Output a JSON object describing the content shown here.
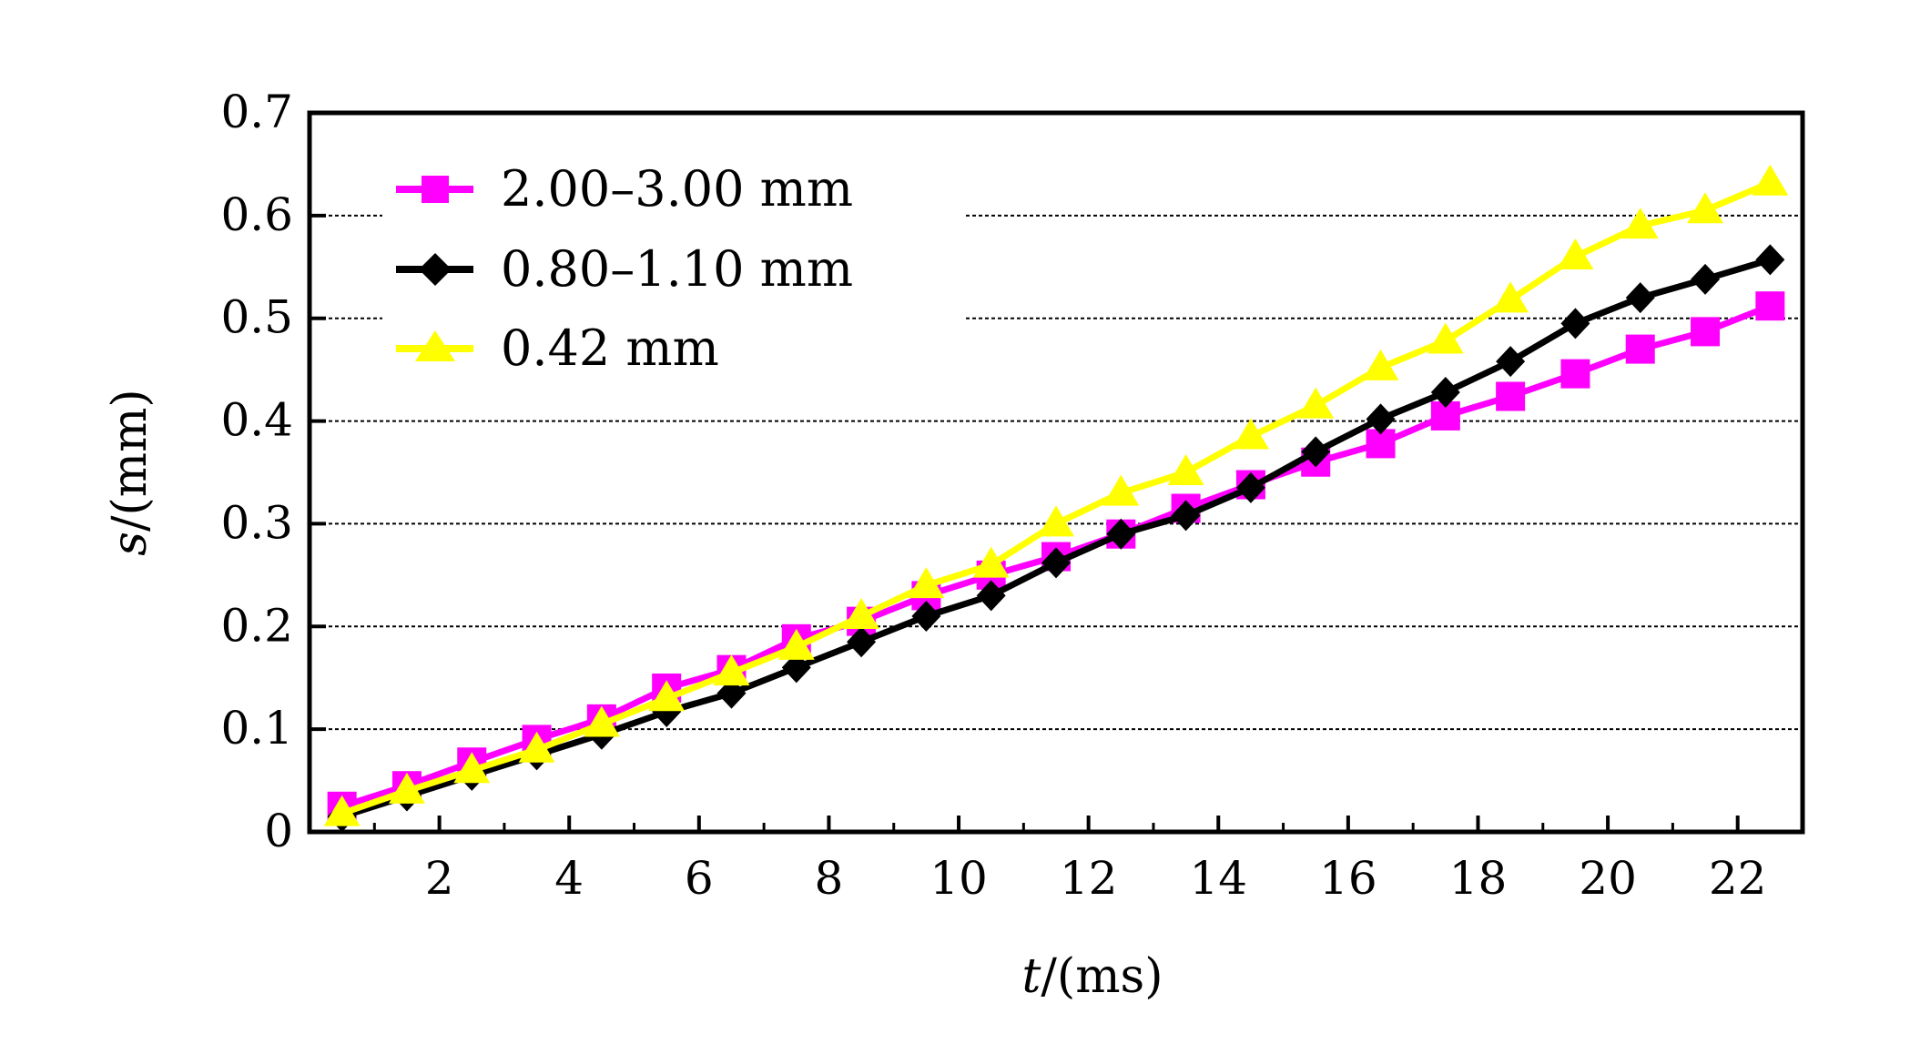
{
  "chart_data": {
    "type": "line",
    "xlabel": {
      "var": "t",
      "unit": "/(ms)"
    },
    "ylabel": {
      "var": "s",
      "unit": "/(mm)"
    },
    "xlim": [
      0,
      23
    ],
    "ylim": [
      0,
      0.7
    ],
    "x_ticks": [
      2,
      4,
      6,
      8,
      10,
      12,
      14,
      16,
      18,
      20,
      22
    ],
    "y_ticks": [
      0,
      0.1,
      0.2,
      0.3,
      0.4,
      0.5,
      0.6,
      0.7
    ],
    "y_tick_labels": [
      "0",
      "0.1",
      "0.2",
      "0.3",
      "0.4",
      "0.5",
      "0.6",
      "0.7"
    ],
    "grid": "horizontal-dashed",
    "legend_position": "top-left",
    "x": [
      0.5,
      1.5,
      2.5,
      3.5,
      4.5,
      5.5,
      6.5,
      7.5,
      8.5,
      9.5,
      10.5,
      11.5,
      12.5,
      13.5,
      14.5,
      15.5,
      16.5,
      17.5,
      18.5,
      19.5,
      20.5,
      21.5,
      22.5
    ],
    "series": [
      {
        "name": "2.00–3.00 mm",
        "color": "#ff00ff",
        "marker": "square",
        "values": [
          0.025,
          0.045,
          0.068,
          0.09,
          0.11,
          0.14,
          0.158,
          0.188,
          0.205,
          0.23,
          0.25,
          0.268,
          0.29,
          0.315,
          0.338,
          0.36,
          0.378,
          0.405,
          0.424,
          0.446,
          0.47,
          0.487,
          0.512
        ]
      },
      {
        "name": "0.80–1.10 mm",
        "color": "#000000",
        "marker": "diamond",
        "values": [
          0.015,
          0.035,
          0.055,
          0.075,
          0.095,
          0.117,
          0.135,
          0.16,
          0.185,
          0.21,
          0.23,
          0.262,
          0.29,
          0.308,
          0.335,
          0.37,
          0.402,
          0.428,
          0.458,
          0.495,
          0.52,
          0.538,
          0.557
        ]
      },
      {
        "name": "0.42 mm",
        "color": "#ffff00",
        "marker": "triangle",
        "values": [
          0.018,
          0.04,
          0.06,
          0.08,
          0.105,
          0.13,
          0.155,
          0.18,
          0.21,
          0.24,
          0.26,
          0.3,
          0.33,
          0.35,
          0.385,
          0.415,
          0.452,
          0.478,
          0.518,
          0.56,
          0.59,
          0.605,
          0.632
        ]
      }
    ]
  }
}
